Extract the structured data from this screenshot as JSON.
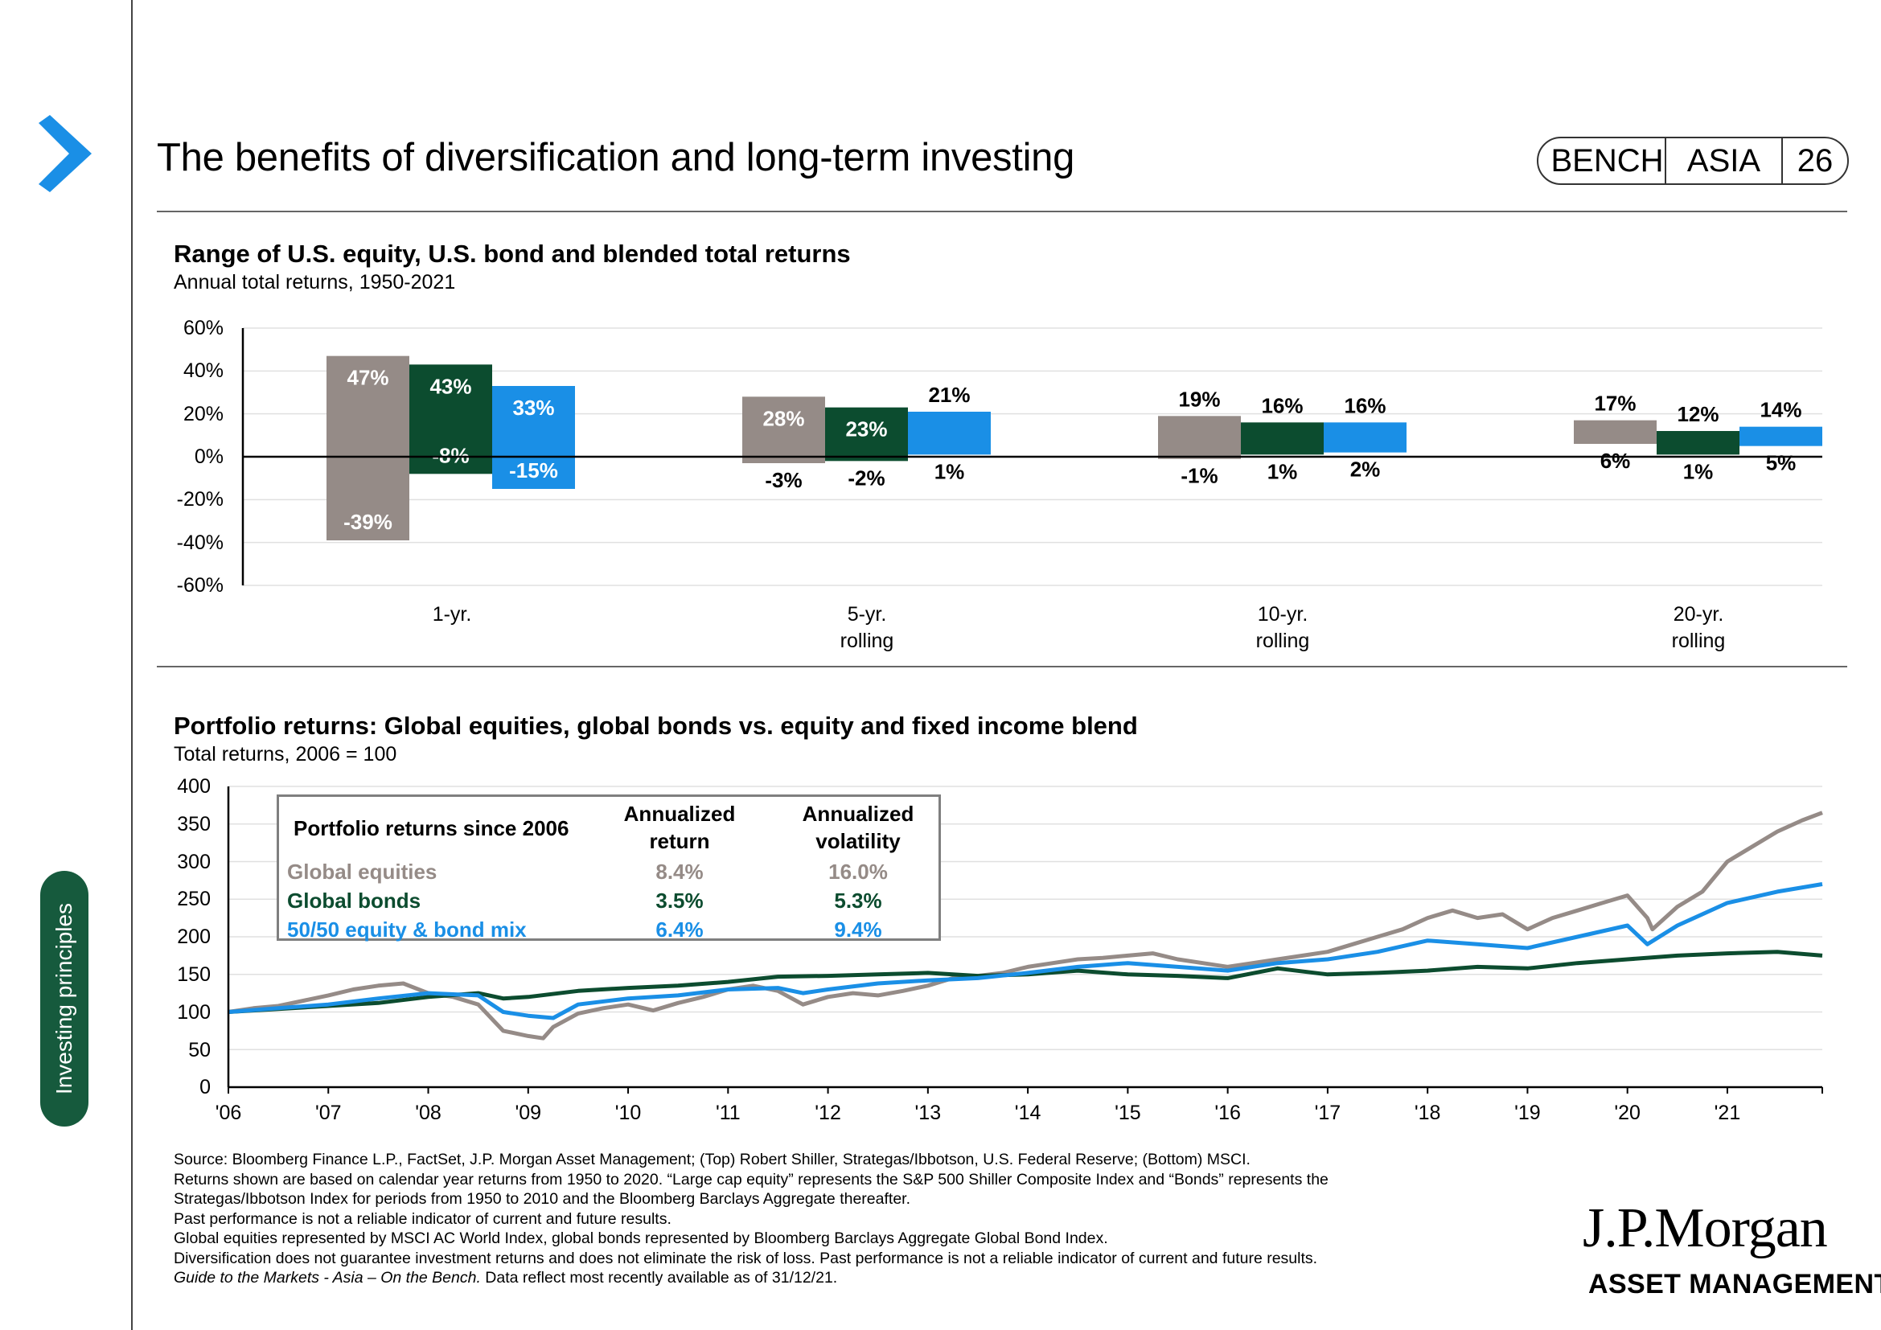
{
  "page": {
    "title": "The benefits of diversification and long-term investing",
    "badge": [
      "BENCH",
      "ASIA",
      "26"
    ],
    "side_tab": "Investing principles",
    "logo": "J.P.Morgan",
    "logo_sub": "ASSET MANAGEMENT",
    "colors": {
      "equity": "#958b87",
      "bond": "#0c4c2f",
      "blend": "#1a8fe6",
      "tab": "#165a3d",
      "arrow": "#1a8fe6"
    },
    "icon": "chevron-right-icon"
  },
  "chart1_text": {
    "title": "Range of U.S. equity, U.S. bond and blended total returns",
    "subtitle": "Annual total returns, 1950-2021"
  },
  "chart2_text": {
    "title": "Portfolio returns: Global equities, global bonds vs. equity and fixed income blend",
    "subtitle": "Total returns, 2006 = 100"
  },
  "chart_data": [
    {
      "type": "bar",
      "title": "Range of U.S. equity, U.S. bond and blended total returns",
      "subtitle": "Annual total returns, 1950-2021",
      "categories": [
        "1-yr.",
        "5-yr.\nrolling",
        "10-yr.\nrolling",
        "20-yr.\nrolling"
      ],
      "y_ticks": [
        "60%",
        "40%",
        "20%",
        "0%",
        "-20%",
        "-40%",
        "-60%"
      ],
      "ylim": [
        -60,
        60
      ],
      "grid": true,
      "series": [
        {
          "high": [
            47,
            28,
            19,
            17
          ],
          "low": [
            -39,
            -3,
            -1,
            6
          ],
          "high_labels": [
            "47%",
            "28%",
            "19%",
            "17%"
          ],
          "low_labels": [
            "-39%",
            "-3%",
            "-1%",
            "6%"
          ]
        },
        {
          "high": [
            43,
            23,
            16,
            12
          ],
          "low": [
            -8,
            -2,
            1,
            1
          ],
          "high_labels": [
            "43%",
            "23%",
            "16%",
            "12%"
          ],
          "low_labels": [
            "-8%",
            "-2%",
            "1%",
            "1%"
          ]
        },
        {
          "high": [
            33,
            21,
            16,
            14
          ],
          "low": [
            -15,
            1,
            2,
            5
          ],
          "high_labels": [
            "33%",
            "21%",
            "16%",
            "14%"
          ],
          "low_labels": [
            "-15%",
            "1%",
            "2%",
            "5%"
          ]
        }
      ]
    },
    {
      "type": "line",
      "title": "Portfolio returns: Global equities, global bonds vs. equity and fixed income blend",
      "subtitle": "Total returns, 2006 = 100",
      "x_ticks": [
        "'06",
        "'07",
        "'08",
        "'09",
        "'10",
        "'11",
        "'12",
        "'13",
        "'14",
        "'15",
        "'16",
        "'17",
        "'18",
        "'19",
        "'20",
        "'21"
      ],
      "y_ticks": [
        "400",
        "350",
        "300",
        "250",
        "200",
        "150",
        "100",
        "50",
        "0"
      ],
      "xlim": [
        2006,
        2021.95
      ],
      "ylim": [
        0,
        400
      ],
      "grid": true,
      "series": [
        {
          "name": "Global equities",
          "x": [
            2006,
            2006.25,
            2006.5,
            2006.75,
            2007,
            2007.25,
            2007.5,
            2007.75,
            2008,
            2008.25,
            2008.5,
            2008.75,
            2009,
            2009.15,
            2009.25,
            2009.5,
            2009.75,
            2010,
            2010.25,
            2010.5,
            2010.75,
            2011,
            2011.25,
            2011.5,
            2011.75,
            2012,
            2012.25,
            2012.5,
            2012.75,
            2013,
            2013.25,
            2013.5,
            2013.75,
            2014,
            2014.25,
            2014.5,
            2014.75,
            2015,
            2015.25,
            2015.5,
            2015.75,
            2016,
            2016.25,
            2016.5,
            2016.75,
            2017,
            2017.25,
            2017.5,
            2017.75,
            2018,
            2018.25,
            2018.5,
            2018.75,
            2019,
            2019.25,
            2019.5,
            2019.75,
            2020,
            2020.2,
            2020.25,
            2020.5,
            2020.75,
            2021,
            2021.25,
            2021.5,
            2021.75,
            2021.95
          ],
          "values": [
            100,
            105,
            108,
            115,
            122,
            130,
            135,
            138,
            125,
            120,
            110,
            75,
            68,
            65,
            80,
            98,
            105,
            110,
            102,
            112,
            120,
            130,
            135,
            128,
            110,
            120,
            125,
            122,
            128,
            135,
            145,
            148,
            152,
            160,
            165,
            170,
            172,
            175,
            178,
            170,
            165,
            160,
            165,
            170,
            175,
            180,
            190,
            200,
            210,
            225,
            235,
            225,
            230,
            210,
            225,
            235,
            245,
            255,
            225,
            210,
            240,
            260,
            300,
            320,
            340,
            355,
            365
          ]
        },
        {
          "name": "Global bonds",
          "x": [
            2006,
            2006.5,
            2007,
            2007.5,
            2008,
            2008.5,
            2008.75,
            2009,
            2009.5,
            2010,
            2010.5,
            2011,
            2011.5,
            2012,
            2012.5,
            2013,
            2013.5,
            2014,
            2014.5,
            2015,
            2015.5,
            2016,
            2016.5,
            2017,
            2017.5,
            2018,
            2018.5,
            2019,
            2019.5,
            2020,
            2020.5,
            2021,
            2021.5,
            2021.95
          ],
          "values": [
            100,
            104,
            108,
            112,
            120,
            125,
            118,
            120,
            128,
            132,
            135,
            140,
            147,
            148,
            150,
            152,
            148,
            150,
            155,
            150,
            148,
            145,
            158,
            150,
            152,
            155,
            160,
            158,
            165,
            170,
            175,
            178,
            180,
            175
          ]
        },
        {
          "name": "50/50 equity & bond mix",
          "x": [
            2006,
            2006.5,
            2007,
            2007.5,
            2008,
            2008.5,
            2008.75,
            2009,
            2009.25,
            2009.5,
            2010,
            2010.5,
            2011,
            2011.5,
            2011.75,
            2012,
            2012.5,
            2013,
            2013.5,
            2014,
            2014.5,
            2015,
            2015.5,
            2016,
            2016.5,
            2017,
            2017.5,
            2018,
            2018.5,
            2019,
            2019.5,
            2020,
            2020.2,
            2020.5,
            2021,
            2021.5,
            2021.95
          ],
          "values": [
            100,
            105,
            110,
            118,
            125,
            122,
            100,
            95,
            92,
            110,
            118,
            122,
            130,
            132,
            125,
            130,
            138,
            142,
            145,
            152,
            160,
            165,
            160,
            155,
            165,
            170,
            180,
            195,
            190,
            185,
            200,
            215,
            190,
            215,
            245,
            260,
            270
          ]
        }
      ]
    }
  ],
  "summary_table": {
    "header": [
      "Portfolio returns since 2006",
      "Annualized\nreturn",
      "Annualized\nvolatility"
    ],
    "rows": [
      {
        "name": "Global equities",
        "return": "8.4%",
        "volatility": "16.0%"
      },
      {
        "name": "Global bonds",
        "return": "3.5%",
        "volatility": "5.3%"
      },
      {
        "name": "50/50 equity & bond mix",
        "return": "6.4%",
        "volatility": "9.4%"
      }
    ]
  },
  "source_lines": [
    "Source: Bloomberg Finance L.P., FactSet, J.P. Morgan Asset Management; (Top) Robert Shiller, Strategas/Ibbotson, U.S. Federal Reserve; (Bottom) MSCI.",
    "Returns shown are based on calendar year returns from 1950 to 2020. “Large cap equity” represents the S&P 500 Shiller Composite Index and “Bonds” represents the",
    "Strategas/Ibbotson Index for periods from 1950 to 2010 and the Bloomberg Barclays Aggregate thereafter.",
    "Past performance is not a reliable indicator of current and future results.",
    "Global equities represented by MSCI AC World Index, global bonds represented by Bloomberg Barclays Aggregate Global Bond Index.",
    "Diversification does not guarantee investment returns and does not eliminate the risk of loss. Past performance is not a reliable indicator of current and future results."
  ],
  "source_last": {
    "italic": "Guide to the Markets - Asia – On the Bench.",
    "normal": " Data reflect most recently available as of 31/12/21."
  }
}
